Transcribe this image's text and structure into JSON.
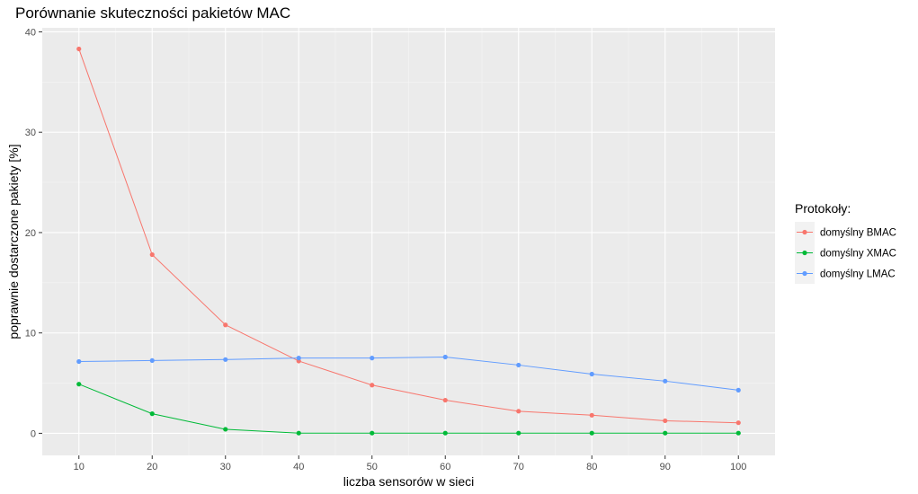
{
  "chart_data": {
    "type": "line",
    "title": "Porównanie skuteczności pakietów MAC",
    "xlabel": "liczba sensorów w sieci",
    "ylabel": "poprawnie dostarczone pakiety [%]",
    "x": [
      10,
      20,
      30,
      40,
      50,
      60,
      70,
      80,
      90,
      100
    ],
    "xlim": [
      5,
      105
    ],
    "ylim": [
      -2.2,
      40.4
    ],
    "xticks": [
      10,
      20,
      30,
      40,
      50,
      60,
      70,
      80,
      90,
      100
    ],
    "yticks": [
      0,
      10,
      20,
      30,
      40
    ],
    "grid": true,
    "legend": {
      "title": "Protokoły:",
      "placement": "right"
    },
    "series": [
      {
        "name": "domyślny BMAC",
        "color": "#F8766D",
        "values": [
          38.3,
          17.8,
          10.8,
          7.2,
          4.8,
          3.3,
          2.2,
          1.8,
          1.25,
          1.05
        ]
      },
      {
        "name": "domyślny XMAC",
        "color": "#00BA38",
        "values": [
          4.9,
          1.95,
          0.4,
          0.02,
          0.02,
          0.02,
          0.02,
          0.02,
          0.02,
          0.02
        ]
      },
      {
        "name": "domyślny LMAC",
        "color": "#619CFF",
        "values": [
          7.15,
          7.25,
          7.35,
          7.5,
          7.5,
          7.6,
          6.8,
          5.9,
          5.2,
          4.3
        ]
      }
    ]
  }
}
